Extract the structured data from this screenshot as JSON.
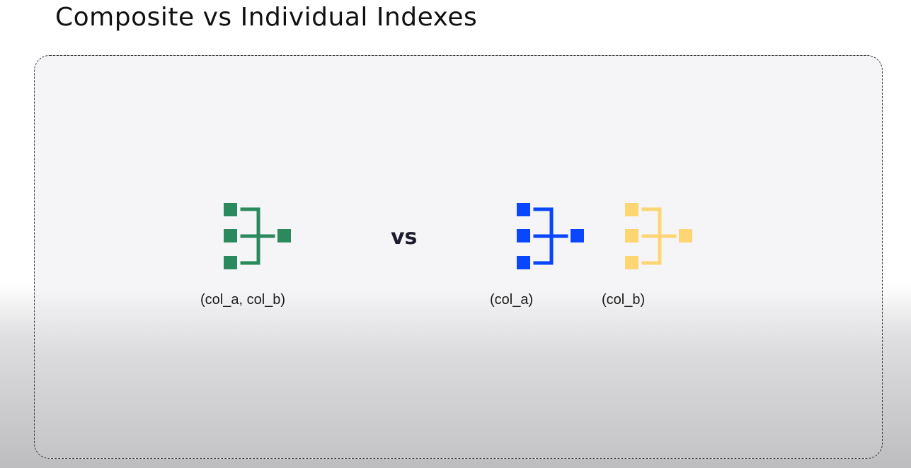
{
  "title": "Composite vs Individual Indexes",
  "separator": "vs",
  "indexes": [
    {
      "id": "composite",
      "label": "(col_a, col_b)",
      "color": "#2a8a5e",
      "icon": "index-tree-icon"
    },
    {
      "id": "col-a",
      "label": "(col_a)",
      "color": "#0a46ff",
      "icon": "index-tree-icon"
    },
    {
      "id": "col-b",
      "label": "(col_b)",
      "color": "#fdd673",
      "icon": "index-tree-icon"
    }
  ]
}
